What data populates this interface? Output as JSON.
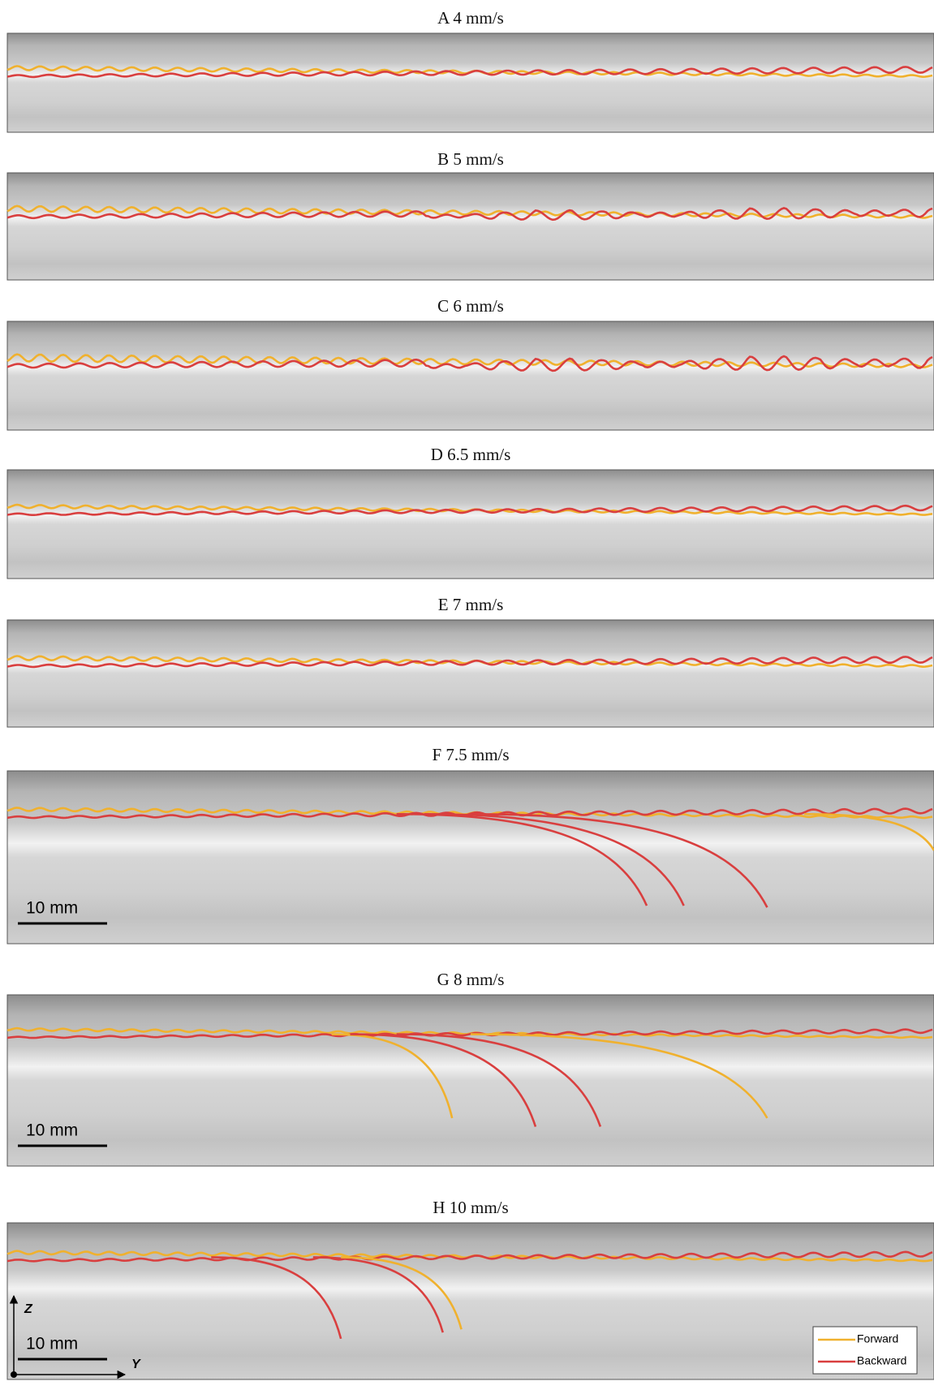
{
  "panels": [
    {
      "label": "A 4 mm/s"
    },
    {
      "label": "B 5 mm/s"
    },
    {
      "label": "C 6 mm/s"
    },
    {
      "label": "D 6.5 mm/s"
    },
    {
      "label": "E 7 mm/s"
    },
    {
      "label": "F 7.5 mm/s",
      "scale_bar": "10 mm"
    },
    {
      "label": "G 8 mm/s",
      "scale_bar": "10 mm"
    },
    {
      "label": "H 10 mm/s",
      "scale_bar": "10 mm",
      "axis_z": "Z",
      "axis_y": "Y"
    }
  ],
  "legend": {
    "items": [
      {
        "name": "Forward",
        "color": "#f0b12e"
      },
      {
        "name": "Backward",
        "color": "#d93f3f"
      }
    ]
  }
}
